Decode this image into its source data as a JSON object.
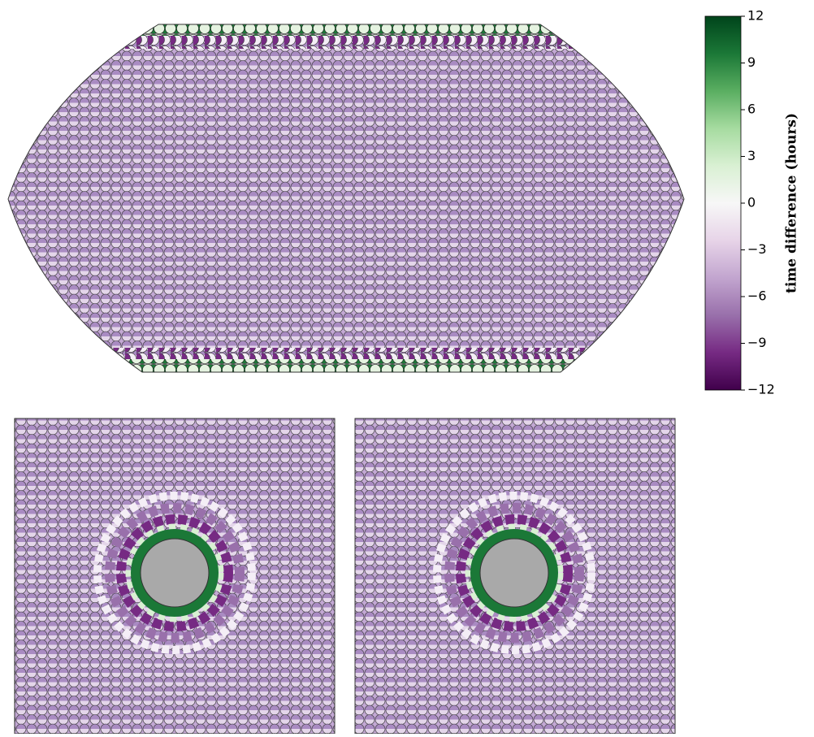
{
  "chart_data": {
    "type": "map",
    "colorbar": {
      "label": "time difference (hours)",
      "clim": [
        -12,
        12
      ],
      "ticks": [
        12,
        9,
        6,
        3,
        0,
        {
          "value": -3,
          "label": "−3"
        },
        {
          "value": -6,
          "label": "−6"
        },
        {
          "value": -9,
          "label": "−9"
        },
        {
          "value": -12,
          "label": "−12"
        }
      ],
      "colormap": [
        "#40004b",
        "#762a83",
        "#9970ab",
        "#c2a5cf",
        "#e7d4e8",
        "#f7f7f7",
        "#d9f0d3",
        "#a6dba0",
        "#5aae61",
        "#1b7837",
        "#00441b"
      ]
    }
  }
}
